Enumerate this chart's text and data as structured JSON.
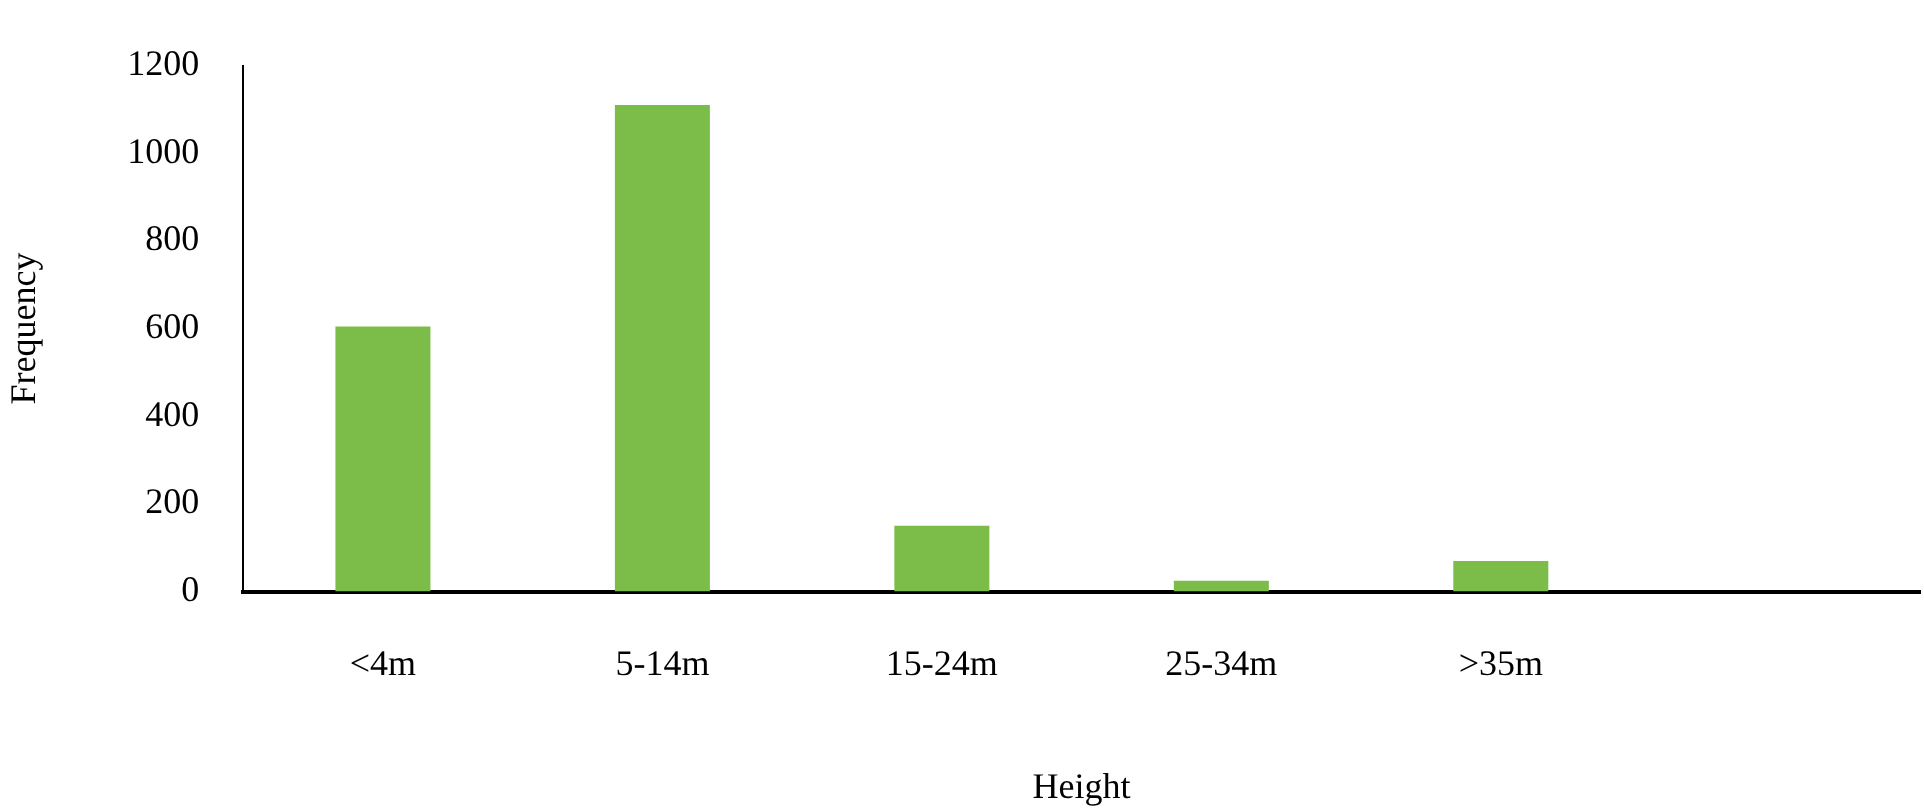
{
  "chart_data": {
    "type": "bar",
    "xlabel": "Height",
    "ylabel": "Frequency",
    "categories": [
      "<4m",
      "5-14m",
      "15-24m",
      "25-34m",
      ">35m",
      null
    ],
    "values": [
      605,
      1110,
      150,
      25,
      70,
      null
    ],
    "color": "#7cbd4a",
    "ylim": [
      0,
      1200
    ],
    "yticks": [
      0,
      200,
      400,
      600,
      800,
      1000,
      1200
    ],
    "grid": false,
    "legend": false
  }
}
